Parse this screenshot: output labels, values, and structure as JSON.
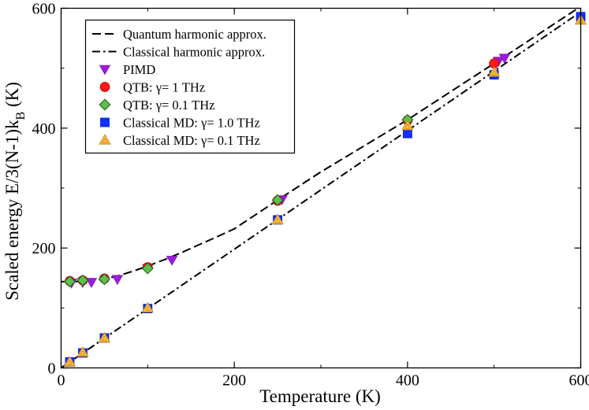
{
  "chart_data": {
    "type": "scatter",
    "xlabel": "Temperature (K)",
    "ylabel_main": "Scaled energy E/3(N-1)k",
    "ylabel_sub": "B",
    "ylabel_suffix": "  (K)",
    "xlim": [
      0,
      600
    ],
    "ylim": [
      0,
      600
    ],
    "xticks": [
      0,
      200,
      400,
      600
    ],
    "yticks": [
      0,
      200,
      400,
      600
    ],
    "grid": false,
    "legend_position": "top-left",
    "lines": [
      {
        "name": "Quantum harmonic approx.",
        "style": "dashed",
        "color": "#000000",
        "x": [
          0,
          10,
          20,
          30,
          40,
          50,
          60,
          70,
          80,
          90,
          100,
          110,
          120,
          130,
          140,
          150,
          160,
          175,
          200,
          250,
          300,
          400,
          500,
          600
        ],
        "y": [
          144,
          144,
          144.3,
          145,
          146.5,
          148.5,
          151.5,
          155.5,
          160,
          164.8,
          170,
          175.5,
          181,
          187,
          193,
          199.5,
          206,
          215.5,
          232,
          280,
          327,
          414,
          508,
          603
        ]
      },
      {
        "name": "Classical harmonic approx.",
        "style": "dashdot",
        "color": "#000000",
        "x": [
          0,
          600
        ],
        "y": [
          0,
          594
        ]
      }
    ],
    "series": [
      {
        "name": "PIMD",
        "marker": "triangle-down",
        "color": "#9d1cd9",
        "stroke": "#8a16c4",
        "x": [
          12,
          25,
          35,
          65,
          100,
          128,
          255,
          505,
          512
        ],
        "y": [
          142,
          143,
          143,
          148,
          166,
          180,
          281,
          512,
          517
        ]
      },
      {
        "name": "QTB: γ= 1 THz",
        "marker": "circle",
        "color": "#ff1a1a",
        "stroke": "#cc0000",
        "x": [
          10,
          25,
          50,
          100,
          250,
          400,
          500
        ],
        "y": [
          145,
          146,
          149,
          168,
          279,
          413,
          508
        ]
      },
      {
        "name": "QTB: γ= 0.1 THz",
        "marker": "diamond",
        "color": "#5cc04a",
        "stroke": "#1e5a16",
        "x": [
          10,
          25,
          50,
          100,
          250,
          400
        ],
        "y": [
          144,
          146,
          148,
          166,
          280,
          414
        ]
      },
      {
        "name": "Classical MD: γ= 1.0 THz",
        "marker": "square",
        "color": "#1030ff",
        "stroke": "#0a1fcc",
        "x": [
          10,
          25,
          50,
          100,
          250,
          400,
          500,
          600
        ],
        "y": [
          10,
          25,
          50,
          99,
          247,
          391,
          489,
          586
        ]
      },
      {
        "name": "Classical MD: γ= 0.1 THz",
        "marker": "triangle-up",
        "color": "#ffc04a",
        "stroke": "#c98a10",
        "x": [
          10,
          25,
          50,
          100,
          250,
          400,
          500,
          600
        ],
        "y": [
          10,
          26,
          50,
          100,
          247,
          404,
          493,
          580
        ]
      }
    ]
  }
}
